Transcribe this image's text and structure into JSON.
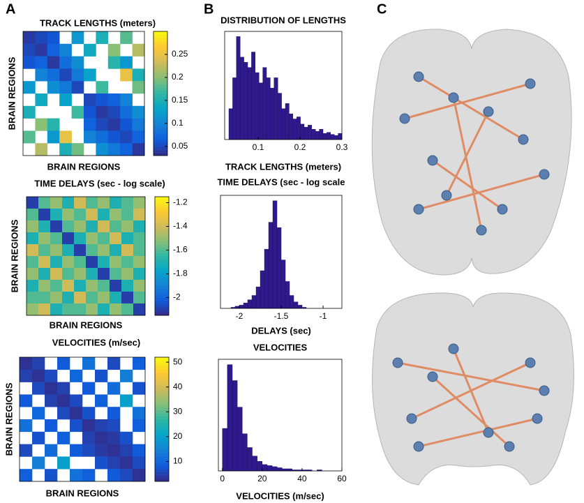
{
  "panel_labels": [
    "A",
    "B",
    "C"
  ],
  "colormap": [
    "#352a87",
    "#0f5cdd",
    "#1481d6",
    "#06a4ca",
    "#2eb7a4",
    "#87bf77",
    "#d1bb59",
    "#fec832",
    "#f9fb0e"
  ],
  "chart_data": [
    {
      "type": "heatmap",
      "title": "TRACK LENGTHS (meters)",
      "x_label": "BRAIN REGIONS",
      "y_label": "BRAIN REGIONS",
      "clim": [
        0.03,
        0.3
      ],
      "cticks": [
        0.05,
        0.1,
        0.15,
        0.2,
        0.25
      ],
      "matrix": [
        [
          0.04,
          0.05,
          0.06,
          null,
          0.12,
          null,
          0.15,
          null,
          0.18,
          null
        ],
        [
          0.05,
          0.04,
          0.07,
          0.1,
          null,
          0.14,
          null,
          0.2,
          null,
          0.22
        ],
        [
          0.06,
          0.07,
          0.04,
          0.08,
          0.11,
          null,
          null,
          0.16,
          0.12,
          null
        ],
        [
          null,
          0.1,
          0.08,
          0.05,
          0.09,
          0.13,
          null,
          null,
          0.25,
          0.15
        ],
        [
          0.12,
          null,
          0.11,
          0.09,
          0.05,
          null,
          0.17,
          null,
          null,
          0.19
        ],
        [
          null,
          0.14,
          null,
          0.13,
          null,
          0.05,
          0.06,
          0.07,
          0.1,
          null
        ],
        [
          0.15,
          null,
          null,
          null,
          0.17,
          0.06,
          0.04,
          0.05,
          0.08,
          0.11
        ],
        [
          null,
          0.2,
          0.16,
          null,
          null,
          0.07,
          0.05,
          0.04,
          0.06,
          0.09
        ],
        [
          0.18,
          null,
          0.12,
          0.25,
          null,
          0.1,
          0.08,
          0.06,
          0.05,
          0.07
        ],
        [
          null,
          0.22,
          null,
          0.15,
          0.19,
          null,
          0.11,
          0.09,
          0.07,
          0.04
        ]
      ]
    },
    {
      "type": "histogram",
      "title": "DISTRIBUTION OF LENGTHS",
      "x_label": "TRACK LENGTHS (meters)",
      "color": "#2e1a8c",
      "xlim": [
        0.02,
        0.3
      ],
      "xticks": [
        0.1,
        0.2,
        0.3
      ],
      "ylim": [
        0,
        105
      ],
      "bins": [
        0.03,
        0.039,
        0.048,
        0.057,
        0.066,
        0.075,
        0.084,
        0.093,
        0.102,
        0.111,
        0.12,
        0.129,
        0.138,
        0.147,
        0.156,
        0.165,
        0.174,
        0.183,
        0.192,
        0.201,
        0.21,
        0.219,
        0.228,
        0.237,
        0.246,
        0.255,
        0.264,
        0.273,
        0.282,
        0.291,
        0.3
      ],
      "counts": [
        30,
        60,
        100,
        80,
        75,
        70,
        85,
        65,
        55,
        70,
        60,
        50,
        60,
        45,
        30,
        35,
        25,
        20,
        22,
        15,
        12,
        14,
        10,
        8,
        10,
        6,
        7,
        5,
        4,
        6
      ]
    },
    {
      "type": "heatmap",
      "title": "TIME DELAYS (sec - log scale)",
      "x_label": "BRAIN REGIONS",
      "y_label": "BRAIN REGIONS",
      "clim": [
        -2.15,
        -1.15
      ],
      "cticks": [
        -2,
        -1.8,
        -1.6,
        -1.4,
        -1.2
      ],
      "matrix": [
        [
          -2.1,
          -1.6,
          -1.5,
          -1.7,
          -1.4,
          -1.6,
          -1.5,
          -1.7,
          -1.6,
          -1.5
        ],
        [
          -1.6,
          -2.1,
          -1.7,
          -1.5,
          -1.6,
          -1.4,
          -1.7,
          -1.5,
          -1.6,
          -1.4
        ],
        [
          -1.5,
          -1.7,
          -2.1,
          -1.6,
          -1.5,
          -1.7,
          -1.4,
          -1.6,
          -1.5,
          -1.7
        ],
        [
          -1.7,
          -1.5,
          -1.6,
          -2.1,
          -1.7,
          -1.5,
          -1.6,
          -1.4,
          -1.7,
          -1.6
        ],
        [
          -1.4,
          -1.6,
          -1.5,
          -1.7,
          -2.1,
          -1.6,
          -1.5,
          -1.7,
          -1.4,
          -1.6
        ],
        [
          -1.6,
          -1.4,
          -1.7,
          -1.5,
          -1.6,
          -2.1,
          -1.7,
          -1.5,
          -1.6,
          -1.5
        ],
        [
          -1.5,
          -1.7,
          -1.4,
          -1.6,
          -1.5,
          -1.7,
          -2.1,
          -1.6,
          -1.5,
          -1.7
        ],
        [
          -1.7,
          -1.5,
          -1.6,
          -1.4,
          -1.7,
          -1.5,
          -1.6,
          -2.1,
          -1.7,
          -1.5
        ],
        [
          -1.6,
          -1.6,
          -1.5,
          -1.7,
          -1.4,
          -1.6,
          -1.5,
          -1.7,
          -2.1,
          -1.6
        ],
        [
          -1.5,
          -1.4,
          -1.7,
          -1.6,
          -1.6,
          -1.5,
          -1.7,
          -1.5,
          -1.6,
          -2.1
        ]
      ]
    },
    {
      "type": "histogram",
      "title": "TIME DELAYS (sec - log scale",
      "x_label": "DELAYS (sec)",
      "color": "#2e1a8c",
      "xlim": [
        -2.225,
        -0.775
      ],
      "xticks": [
        -2,
        -1.5,
        -1
      ],
      "ylim": [
        0,
        105
      ],
      "bins": [
        -2.1,
        -2.05,
        -2,
        -1.95,
        -1.9,
        -1.85,
        -1.8,
        -1.75,
        -1.7,
        -1.65,
        -1.6,
        -1.55,
        -1.5,
        -1.45,
        -1.4,
        -1.35,
        -1.3,
        -1.25,
        -1.2
      ],
      "counts": [
        1,
        2,
        3,
        5,
        8,
        12,
        20,
        35,
        55,
        80,
        100,
        75,
        45,
        25,
        12,
        6,
        3,
        1
      ]
    },
    {
      "type": "heatmap",
      "title": "VELOCITIES  (m/sec)",
      "x_label": "BRAIN REGIONS",
      "y_label": "BRAIN REGIONS",
      "clim": [
        2,
        52
      ],
      "cticks": [
        10,
        20,
        30,
        40,
        50
      ],
      "matrix": [
        [
          3,
          5,
          null,
          8,
          null,
          12,
          null,
          6,
          null,
          9
        ],
        [
          5,
          3,
          6,
          null,
          10,
          null,
          7,
          null,
          14,
          null
        ],
        [
          null,
          6,
          3,
          5,
          null,
          8,
          null,
          11,
          null,
          7
        ],
        [
          8,
          null,
          5,
          3,
          6,
          null,
          9,
          null,
          20,
          null
        ],
        [
          null,
          10,
          null,
          6,
          3,
          7,
          null,
          8,
          null,
          12
        ],
        [
          12,
          null,
          8,
          null,
          7,
          3,
          5,
          6,
          null,
          9
        ],
        [
          null,
          7,
          null,
          9,
          null,
          5,
          3,
          4,
          7,
          null
        ],
        [
          6,
          null,
          11,
          null,
          8,
          6,
          4,
          3,
          5,
          8
        ],
        [
          null,
          14,
          null,
          20,
          null,
          null,
          7,
          5,
          3,
          6
        ],
        [
          9,
          null,
          7,
          null,
          12,
          9,
          null,
          8,
          6,
          3
        ]
      ]
    },
    {
      "type": "histogram",
      "title": "VELOCITIES",
      "x_label": "VELOCITIES  (m/sec)",
      "color": "#2e1a8c",
      "xlim": [
        -2,
        60
      ],
      "xticks": [
        0,
        20,
        40,
        60
      ],
      "ylim": [
        0,
        105
      ],
      "bins": [
        0,
        2.5,
        5,
        7.5,
        10,
        12.5,
        15,
        17.5,
        20,
        22.5,
        25,
        27.5,
        30,
        32.5,
        35,
        37.5,
        40,
        42.5,
        45,
        47.5,
        50
      ],
      "counts": [
        40,
        100,
        85,
        60,
        35,
        22,
        14,
        9,
        6,
        5,
        4,
        3,
        2,
        2,
        1,
        1,
        1,
        1,
        0,
        1
      ]
    }
  ]
}
